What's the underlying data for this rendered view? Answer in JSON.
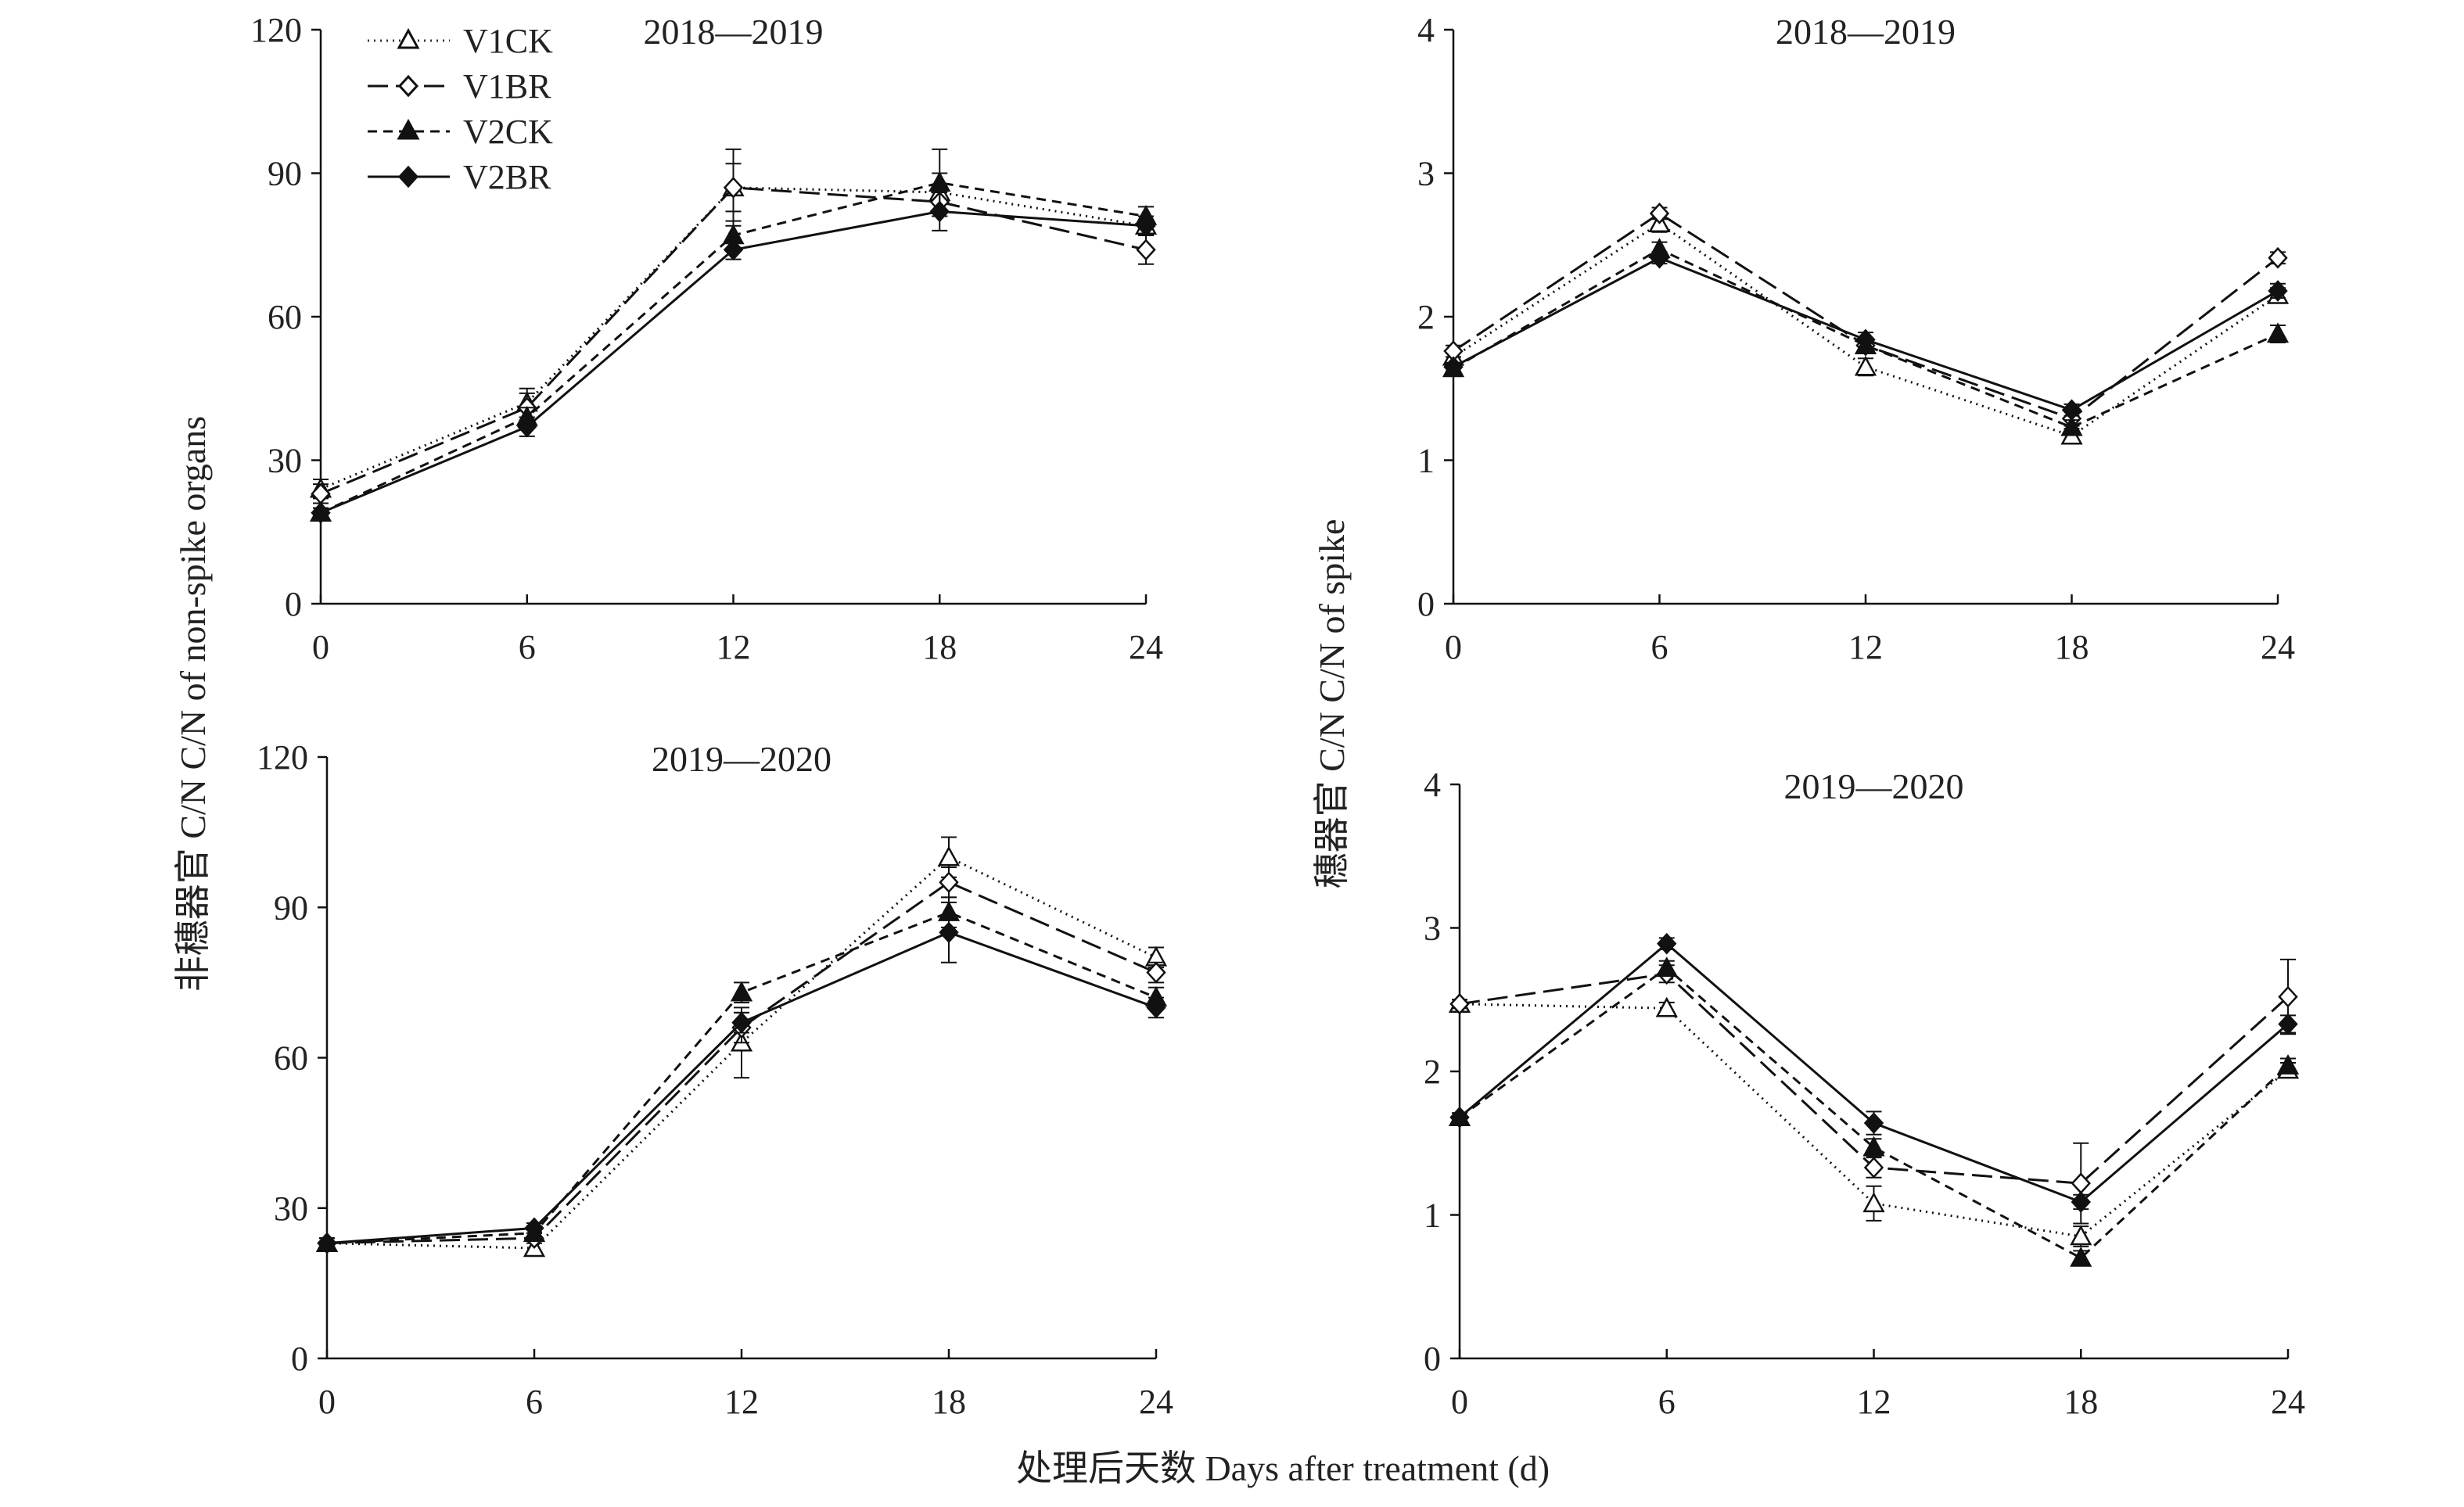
{
  "figure": {
    "legend": [
      {
        "key": "V1CK",
        "label": "V1CK"
      },
      {
        "key": "V1BR",
        "label": "V1BR"
      },
      {
        "key": "V2CK",
        "label": "V2CK"
      },
      {
        "key": "V2BR",
        "label": "V2BR"
      }
    ],
    "ylabel_left": "非穗器官 C/N C/N of non-spike organs",
    "ylabel_right": "穗器官 C/N C/N of spike",
    "xlabel": "处理后天数 Days after treatment (d)"
  },
  "chart_data": [
    {
      "type": "line",
      "title": "2018—2019",
      "x": [
        0,
        6,
        12,
        18,
        24
      ],
      "xlim": [
        0,
        24
      ],
      "ylim": [
        0,
        120
      ],
      "yticks": [
        0,
        30,
        60,
        90,
        120
      ],
      "series": [
        {
          "name": "V1CK",
          "values": [
            24,
            42,
            87,
            86,
            79
          ],
          "errors": [
            2,
            3,
            5,
            4,
            2
          ]
        },
        {
          "name": "V1BR",
          "values": [
            23,
            41,
            87,
            84,
            74
          ],
          "errors": [
            2,
            3,
            8,
            3,
            3
          ]
        },
        {
          "name": "V2CK",
          "values": [
            19,
            39,
            77,
            88,
            81
          ],
          "errors": [
            1,
            2,
            3,
            7,
            2
          ]
        },
        {
          "name": "V2BR",
          "values": [
            19,
            37,
            74,
            82,
            79
          ],
          "errors": [
            1,
            2,
            2,
            4,
            2
          ]
        }
      ]
    },
    {
      "type": "line",
      "title": "2018—2019",
      "x": [
        0,
        6,
        12,
        18,
        24
      ],
      "xlim": [
        0,
        24
      ],
      "ylim": [
        0,
        4
      ],
      "yticks": [
        0,
        1,
        2,
        3,
        4
      ],
      "series": [
        {
          "name": "V1CK",
          "values": [
            1.72,
            2.65,
            1.65,
            1.17,
            2.15
          ],
          "errors": [
            0.04,
            0.06,
            0.06,
            0.05,
            0.05
          ]
        },
        {
          "name": "V1BR",
          "values": [
            1.76,
            2.72,
            1.8,
            1.29,
            2.41
          ],
          "errors": [
            0.04,
            0.04,
            0.05,
            0.05,
            0.04
          ]
        },
        {
          "name": "V2CK",
          "values": [
            1.64,
            2.47,
            1.8,
            1.23,
            1.88
          ],
          "errors": [
            0.03,
            0.05,
            0.05,
            0.05,
            0.06
          ]
        },
        {
          "name": "V2BR",
          "values": [
            1.65,
            2.41,
            1.84,
            1.35,
            2.18
          ],
          "errors": [
            0.03,
            0.04,
            0.05,
            0.04,
            0.05
          ]
        }
      ]
    },
    {
      "type": "line",
      "title": "2019—2020",
      "x": [
        0,
        6,
        12,
        18,
        24
      ],
      "xlim": [
        0,
        24
      ],
      "ylim": [
        0,
        120
      ],
      "yticks": [
        0,
        30,
        60,
        90,
        120
      ],
      "series": [
        {
          "name": "V1CK",
          "values": [
            23,
            22,
            63,
            100,
            80
          ],
          "errors": [
            1,
            1,
            7,
            4,
            2
          ]
        },
        {
          "name": "V1BR",
          "values": [
            23,
            24,
            66,
            95,
            77
          ],
          "errors": [
            1,
            1,
            3,
            3,
            2
          ]
        },
        {
          "name": "V2CK",
          "values": [
            23,
            25,
            73,
            89,
            72
          ],
          "errors": [
            1,
            1,
            2,
            3,
            2
          ]
        },
        {
          "name": "V2BR",
          "values": [
            23,
            26,
            67,
            85,
            70
          ],
          "errors": [
            1,
            1,
            2,
            6,
            2
          ]
        }
      ]
    },
    {
      "type": "line",
      "title": "2019—2020",
      "x": [
        0,
        6,
        12,
        18,
        24
      ],
      "xlim": [
        0,
        24
      ],
      "ylim": [
        0,
        4
      ],
      "yticks": [
        0,
        1,
        2,
        3,
        4
      ],
      "series": [
        {
          "name": "V1CK",
          "values": [
            2.47,
            2.44,
            1.08,
            0.85,
            2.01
          ],
          "errors": [
            0.03,
            0.04,
            0.12,
            0.07,
            0.05
          ]
        },
        {
          "name": "V1BR",
          "values": [
            2.47,
            2.68,
            1.33,
            1.22,
            2.52
          ],
          "errors": [
            0.03,
            0.06,
            0.07,
            0.28,
            0.26
          ]
        },
        {
          "name": "V2CK",
          "values": [
            1.68,
            2.72,
            1.47,
            0.7,
            2.04
          ],
          "errors": [
            0.03,
            0.05,
            0.06,
            0.05,
            0.05
          ]
        },
        {
          "name": "V2BR",
          "values": [
            1.68,
            2.89,
            1.64,
            1.09,
            2.33
          ],
          "errors": [
            0.03,
            0.04,
            0.08,
            0.05,
            0.06
          ]
        }
      ]
    }
  ]
}
